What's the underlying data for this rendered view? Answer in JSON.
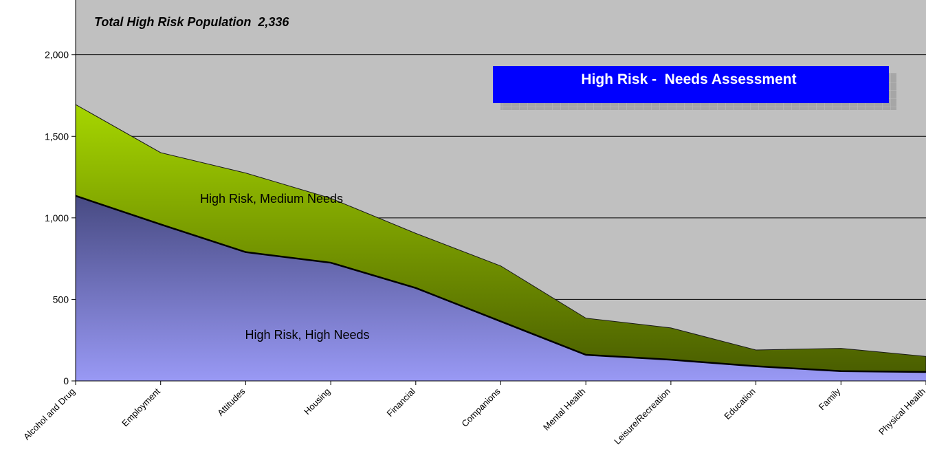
{
  "chart_data": {
    "type": "area",
    "stacked": true,
    "title": "Total High Risk Population  2,336",
    "banner": "High Risk -  Needs Assessment",
    "categories": [
      "Alcohol and Drug",
      "Employment",
      "Attitudes",
      "Housing",
      "Financial",
      "Companions",
      "Mental Health",
      "Leisure/Recreation",
      "Education",
      "Family",
      "Physical Health"
    ],
    "series": [
      {
        "name": "High Risk, High Needs",
        "values": [
          1135,
          960,
          790,
          725,
          570,
          365,
          160,
          130,
          90,
          60,
          55
        ]
      },
      {
        "name": "High Risk, Medium Needs",
        "values": [
          560,
          440,
          485,
          395,
          335,
          340,
          225,
          195,
          100,
          140,
          95
        ]
      }
    ],
    "ylim": [
      0,
      2336
    ],
    "yticks": [
      0,
      500,
      1000,
      1500,
      2000
    ],
    "ytick_labels": [
      "0",
      "500",
      "1,000",
      "1,500",
      "2,000"
    ],
    "grid": true,
    "plot_background": "#c0c0c0",
    "colors": {
      "high_needs_top": "#474a82",
      "high_needs_bottom": "#9999f5",
      "medium_needs_top": "#a6d600",
      "medium_needs_bottom": "#4a5e00",
      "banner": "#0000ff",
      "banner_shadow": "#9e9e9e"
    }
  }
}
